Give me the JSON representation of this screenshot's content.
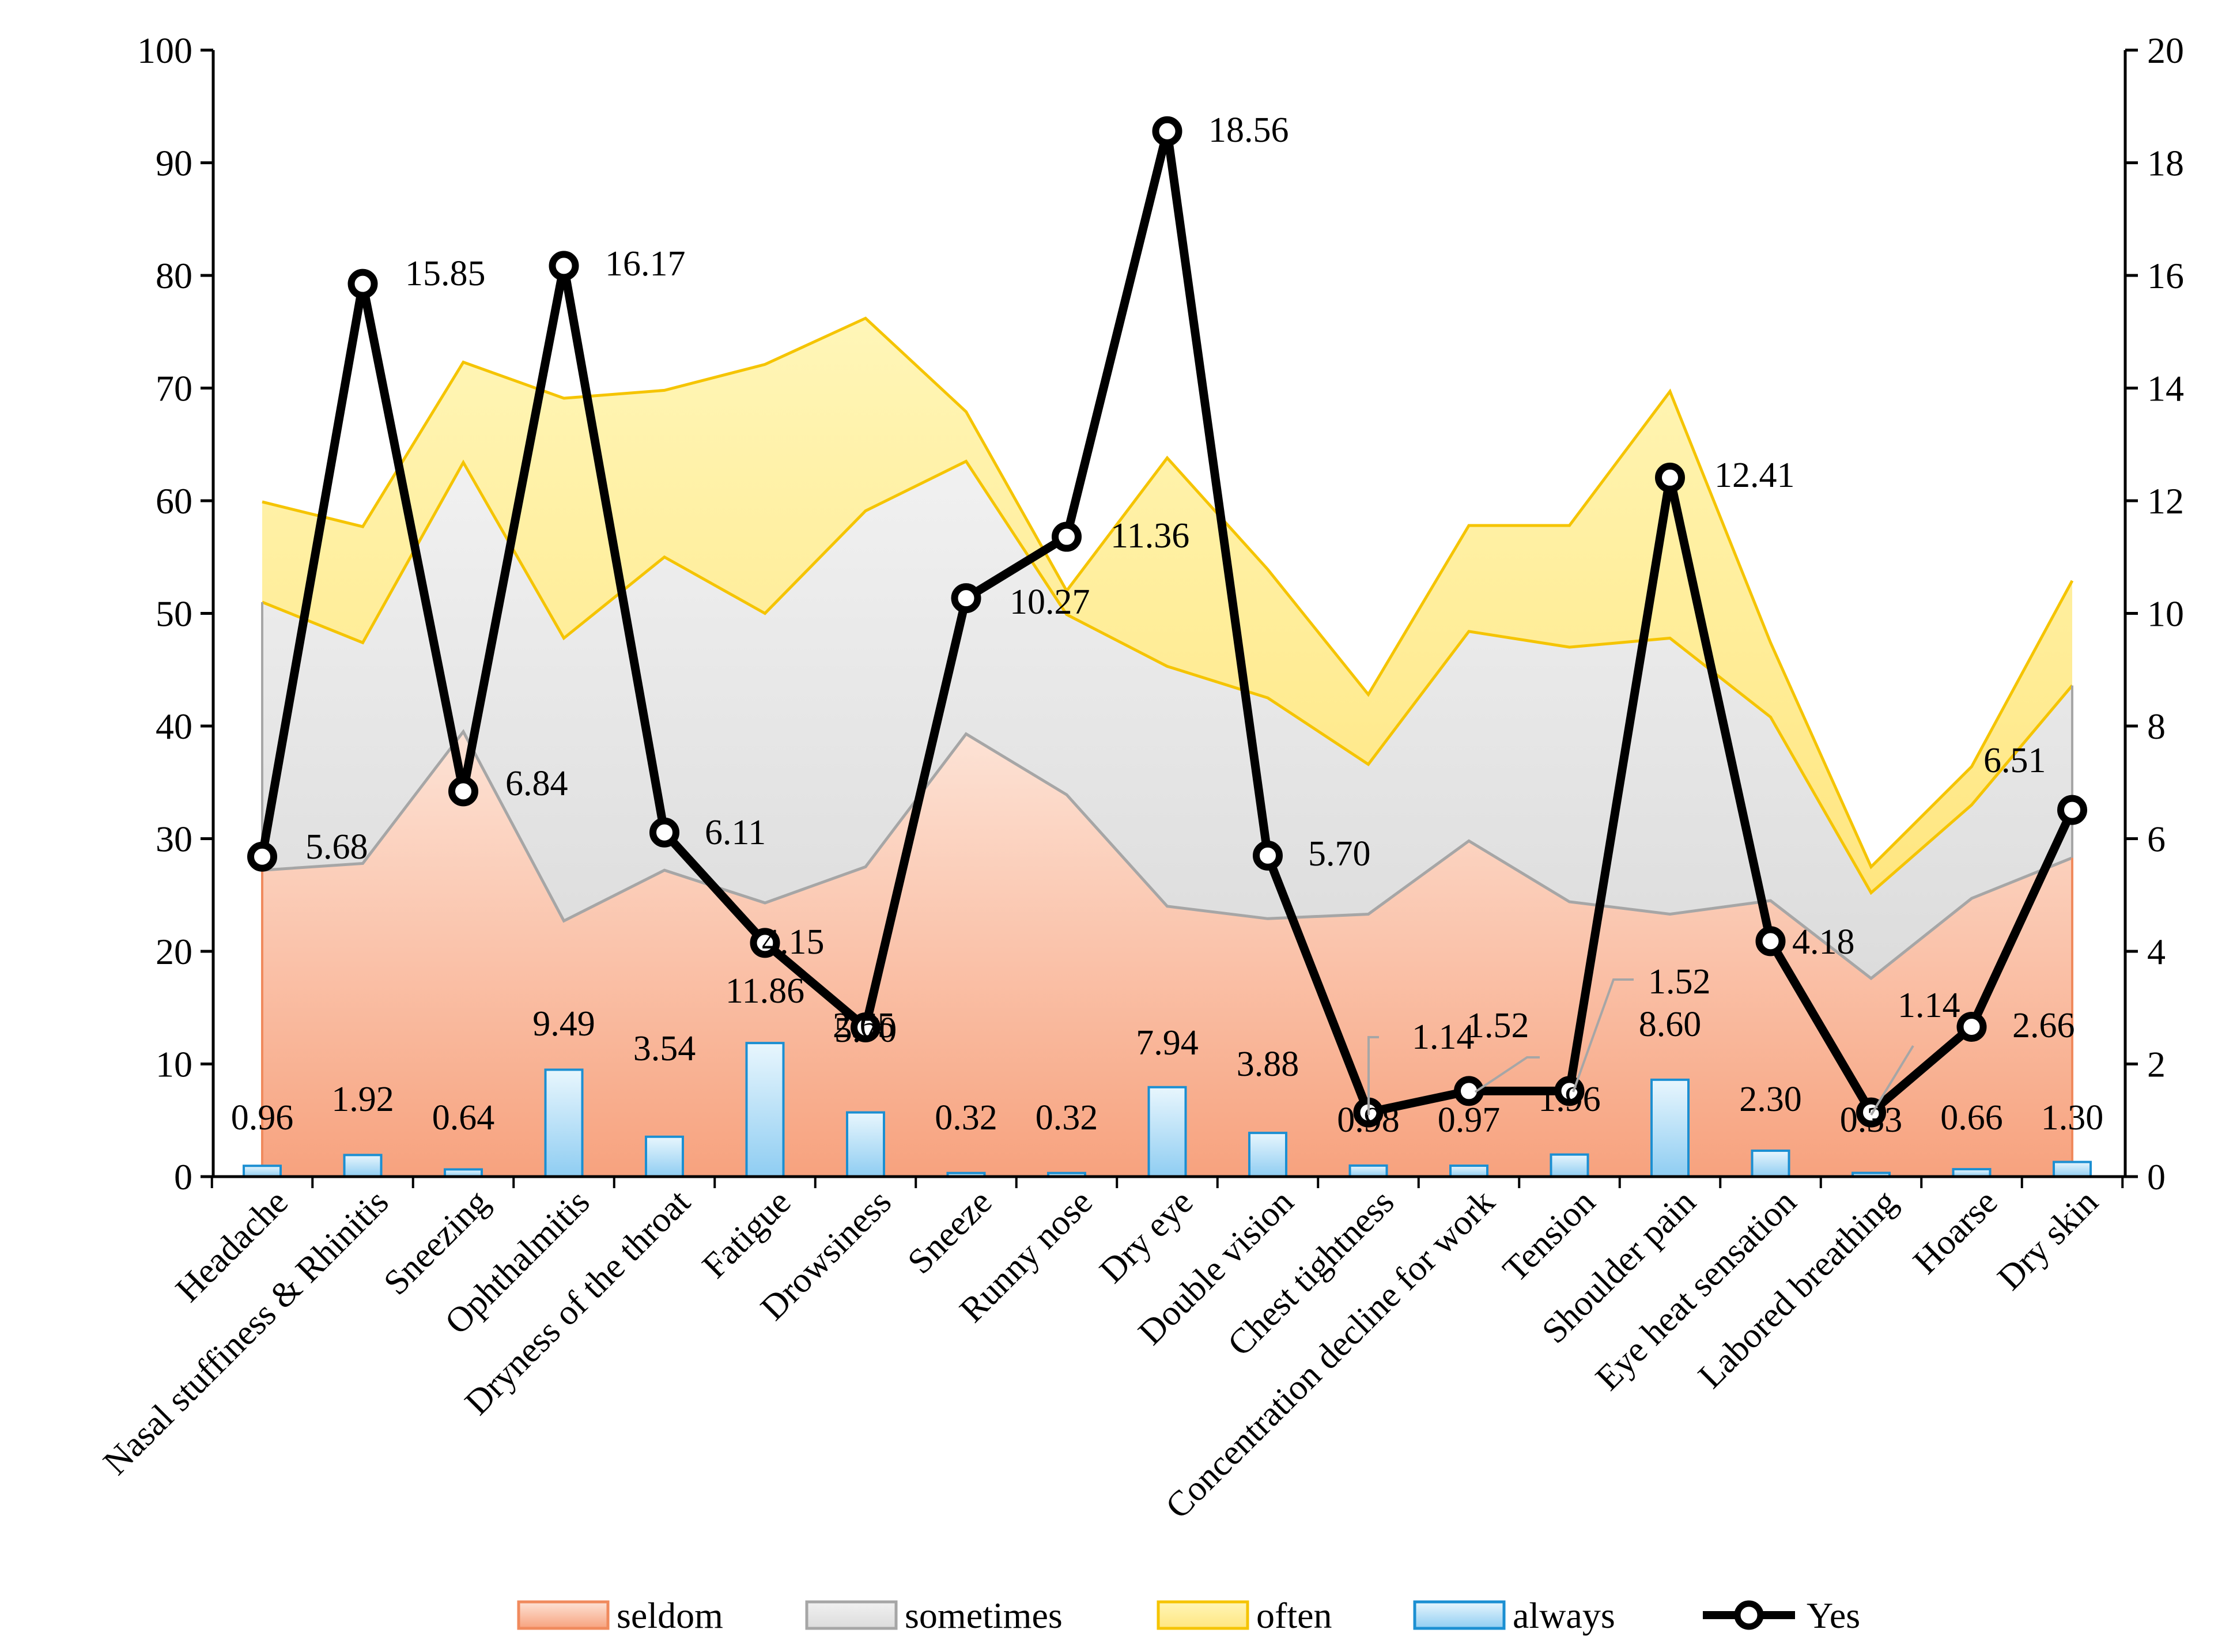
{
  "chart_data": {
    "type": "area",
    "title": "",
    "xlabel": "",
    "ylabel": "",
    "ylabel_right": "",
    "ylim": [
      0,
      100
    ],
    "ylim_right": [
      0,
      20
    ],
    "yticks": [
      "0",
      "10",
      "20",
      "30",
      "40",
      "50",
      "60",
      "70",
      "80",
      "90",
      "100"
    ],
    "yticks_right": [
      "0",
      "2",
      "4",
      "6",
      "8",
      "10",
      "12",
      "14",
      "16",
      "18",
      "20"
    ],
    "categories": [
      "Headache",
      "Nasal stuffiness & Rhinitis",
      "Sneezing",
      "Ophthalmitis",
      "Dryness of the throat",
      "Fatigue",
      "Drowsiness",
      "Sneeze",
      "Runny nose",
      "Dry eye",
      "Double vision",
      "Chest tightness",
      "Concentration decline for work",
      "Tension",
      "Shoulder pain",
      "Eye heat sensation",
      "Labored breathing",
      "Hoarse",
      "Dry skin"
    ],
    "series": [
      {
        "name": "seldom",
        "type": "area-stacked",
        "axis": "left",
        "color": "#f4a582",
        "values": [
          27.2,
          27.8,
          39.5,
          22.7,
          27.2,
          24.3,
          27.5,
          39.3,
          33.9,
          24.0,
          22.9,
          23.3,
          29.8,
          24.4,
          23.3,
          24.5,
          17.6,
          24.7,
          28.3
        ]
      },
      {
        "name": "sometimes",
        "type": "area-stacked",
        "axis": "left",
        "color": "#d9d9d9",
        "values": [
          23.8,
          19.6,
          23.9,
          25.1,
          27.8,
          25.7,
          31.6,
          24.2,
          16.0,
          21.3,
          19.6,
          13.3,
          18.6,
          22.6,
          24.5,
          16.3,
          7.6,
          8.3,
          15.3
        ]
      },
      {
        "name": "often",
        "type": "area-stacked",
        "axis": "left",
        "color": "#ffe97a",
        "values": [
          8.9,
          10.3,
          8.9,
          21.3,
          14.8,
          22.1,
          17.1,
          4.4,
          2.1,
          18.5,
          11.4,
          6.2,
          9.4,
          10.8,
          21.9,
          6.6,
          2.3,
          3.4,
          9.3
        ]
      },
      {
        "name": "always",
        "type": "bar",
        "axis": "left",
        "color": "#9fd3f3",
        "values": [
          0.96,
          1.92,
          0.64,
          9.49,
          3.54,
          11.86,
          5.7,
          0.32,
          0.32,
          7.94,
          3.88,
          0.98,
          0.97,
          1.96,
          8.6,
          2.3,
          0.33,
          0.66,
          1.3
        ],
        "labels": [
          "0.96",
          "1.92",
          "0.64",
          "9.49",
          "3.54",
          "11.86",
          "5.70",
          "0.32",
          "0.32",
          "7.94",
          "3.88",
          "0.98",
          "0.97",
          "1.96",
          "8.60",
          "2.30",
          "0.33",
          "0.66",
          "1.30"
        ]
      },
      {
        "name": "Yes",
        "type": "line",
        "axis": "right",
        "color": "#000000",
        "values": [
          5.68,
          15.85,
          6.84,
          16.17,
          6.11,
          4.15,
          2.65,
          10.27,
          11.36,
          18.56,
          5.7,
          1.14,
          1.52,
          1.52,
          12.41,
          4.18,
          1.14,
          2.66,
          6.51
        ],
        "labels": [
          "5.68",
          "15.85",
          "6.84",
          "16.17",
          "6.11",
          "4.15",
          "2.65",
          "10.27",
          "11.36",
          "18.56",
          "5.70",
          "1.14",
          "1.52",
          "1.52",
          "12.41",
          "4.18",
          "1.14",
          "2.66",
          "6.51"
        ]
      }
    ],
    "legend": [
      "seldom",
      "sometimes",
      "often",
      "always",
      "Yes"
    ],
    "legend_position": "bottom",
    "grid": false
  }
}
